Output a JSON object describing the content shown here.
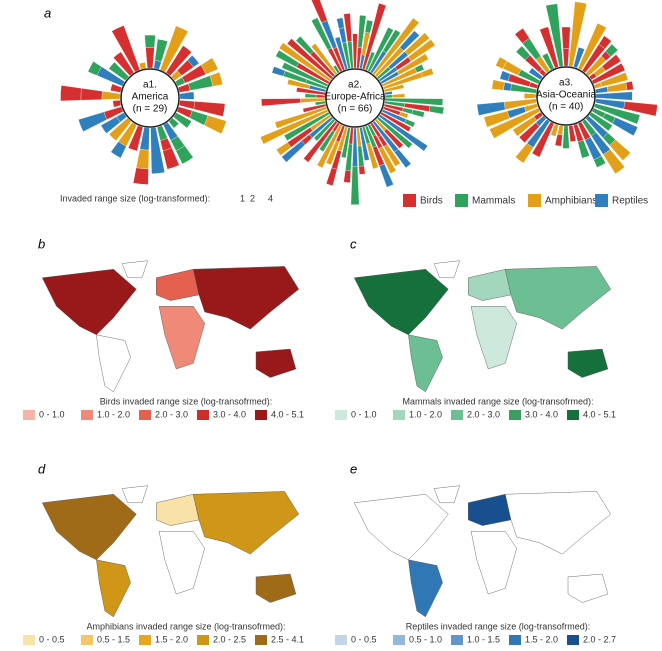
{
  "panel_a": {
    "label": "a",
    "charts": [
      {
        "code": "a1.",
        "region": "America",
        "n": "(n = 29)"
      },
      {
        "code": "a2.",
        "region": "Europe-Africa",
        "n": "(n = 66)"
      },
      {
        "code": "a3.",
        "region": "Asia-Oceania",
        "n": "(n = 40)"
      }
    ],
    "size_legend": {
      "title": "Invaded range size (log-transformed):",
      "ticks": [
        "1",
        "2",
        "4"
      ]
    },
    "taxa": [
      {
        "name": "Birds",
        "color": "#d62f2f"
      },
      {
        "name": "Mammals",
        "color": "#2fa25c"
      },
      {
        "name": "Amphibians",
        "color": "#e39f17"
      },
      {
        "name": "Reptiles",
        "color": "#2f7fbf"
      }
    ]
  },
  "maps": [
    {
      "label": "b",
      "legend_title": "Birds invaded range size (log-transofrmed):",
      "classes": [
        {
          "label": "0 - 1.0",
          "color": "#f6b3a8"
        },
        {
          "label": "1.0 - 2.0",
          "color": "#ef8a78"
        },
        {
          "label": "2.0 - 3.0",
          "color": "#e4604f"
        },
        {
          "label": "3.0 - 4.0",
          "color": "#cc2f2a"
        },
        {
          "label": "4.0 - 5.1",
          "color": "#99191b"
        }
      ]
    },
    {
      "label": "c",
      "legend_title": "Mammals invaded range size (log-transofrmed):",
      "classes": [
        {
          "label": "0 - 1.0",
          "color": "#cde9dc"
        },
        {
          "label": "1.0 - 2.0",
          "color": "#a3d7bd"
        },
        {
          "label": "2.0 - 3.0",
          "color": "#6cbf92"
        },
        {
          "label": "3.0 - 4.0",
          "color": "#3a9e63"
        },
        {
          "label": "4.0 - 5.1",
          "color": "#16703b"
        }
      ]
    },
    {
      "label": "d",
      "legend_title": "Amphibians invaded range size (log-transofrmed):",
      "classes": [
        {
          "label": "0 - 0.5",
          "color": "#f8e2a8"
        },
        {
          "label": "0.5 - 1.5",
          "color": "#f3c767"
        },
        {
          "label": "1.5 - 2.0",
          "color": "#e9a51d"
        },
        {
          "label": "2.0 - 2.5",
          "color": "#d09618"
        },
        {
          "label": "2.5 - 4.1",
          "color": "#a06b18"
        }
      ]
    },
    {
      "label": "e",
      "legend_title": "Reptiles invaded range size (log-transofrmed):",
      "classes": [
        {
          "label": "0 - 0.5",
          "color": "#c2d6e8"
        },
        {
          "label": "0.5 - 1.0",
          "color": "#93b9da"
        },
        {
          "label": "1.0 - 1.5",
          "color": "#5f98c8"
        },
        {
          "label": "1.5 - 2.0",
          "color": "#2f77b5"
        },
        {
          "label": "2.0 - 2.7",
          "color": "#174f8f"
        }
      ]
    }
  ]
}
